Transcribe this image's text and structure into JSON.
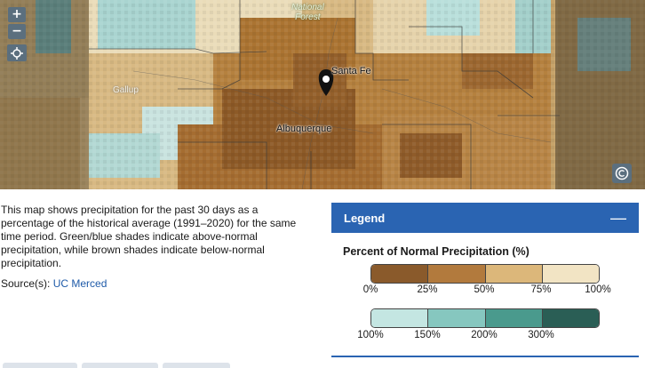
{
  "map": {
    "zoom_in": "+",
    "zoom_out": "−",
    "locate_icon": "locate-icon",
    "copyright_icon": "copyright-icon",
    "labels": {
      "forest": "National\nForest",
      "santa_fe": "Santa Fe",
      "gallup": "Gallup",
      "albuquerque": "Albuquerque"
    }
  },
  "description": "This map shows precipitation for the past 30 days as a percentage of the historical average (1991–2020) for the same time period. Green/blue shades indicate above-normal precipitation, while brown shades indicate below-normal precipitation.",
  "source": {
    "prefix": "Source(s): ",
    "link": "UC Merced"
  },
  "legend": {
    "title": "Legend",
    "collapse": "—",
    "subtitle": "Percent of Normal Precipitation (%)",
    "dry": {
      "colors": [
        "#8a5a2b",
        "#b27a3d",
        "#dcb77a",
        "#f2e4c4"
      ],
      "ticks": [
        "0%",
        "25%",
        "50%",
        "75%",
        "100%"
      ]
    },
    "wet": {
      "colors": [
        "#c4e6e2",
        "#86c7bf",
        "#4a9a8d",
        "#2a5e55"
      ],
      "ticks": [
        "100%",
        "150%",
        "200%",
        "300%"
      ]
    }
  },
  "colors": {
    "accent": "#2a64b2",
    "link": "#1e5aa8"
  }
}
